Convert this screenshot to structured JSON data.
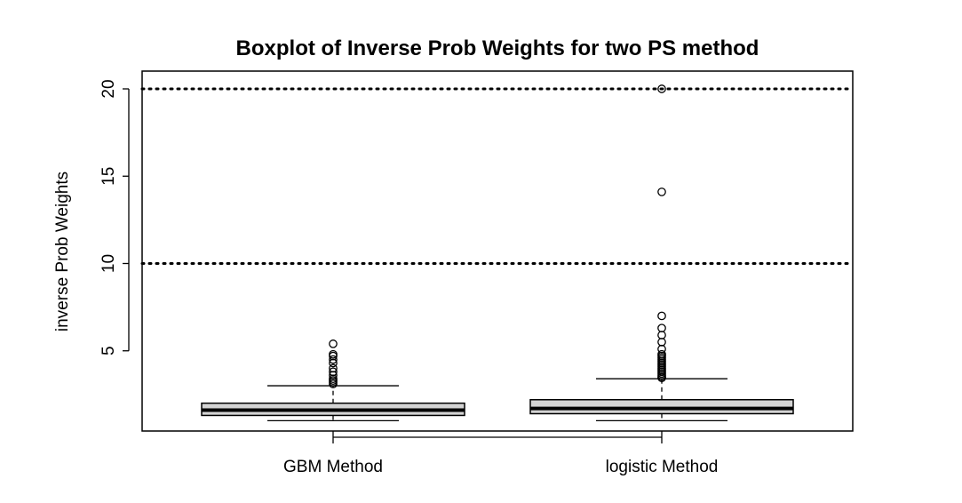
{
  "chart_data": {
    "type": "boxplot",
    "title": "Boxplot of Inverse Prob Weights for two PS method",
    "xlabel": "",
    "ylabel": "inverse Prob Weights",
    "ylim": [
      0,
      21
    ],
    "yticks": [
      5,
      10,
      15,
      20
    ],
    "grid": false,
    "reference_lines": [
      10,
      20
    ],
    "categories": [
      "GBM Method",
      "logistic Method"
    ],
    "series": [
      {
        "category": "GBM Method",
        "whisker_low": 1.0,
        "q1": 1.3,
        "median": 1.6,
        "q3": 2.0,
        "whisker_high": 3.0,
        "outliers": [
          3.1,
          3.2,
          3.3,
          3.4,
          3.6,
          3.8,
          4.0,
          4.3,
          4.5,
          4.7,
          4.8,
          5.4
        ]
      },
      {
        "category": "logistic Method",
        "whisker_low": 1.0,
        "q1": 1.4,
        "median": 1.7,
        "q3": 2.2,
        "whisker_high": 3.4,
        "outliers": [
          3.45,
          3.5,
          3.6,
          3.7,
          3.8,
          3.9,
          4.0,
          4.1,
          4.2,
          4.3,
          4.4,
          4.5,
          4.6,
          4.7,
          4.8,
          5.1,
          5.5,
          5.9,
          6.3,
          7.0,
          14.1,
          20.0
        ]
      }
    ]
  }
}
